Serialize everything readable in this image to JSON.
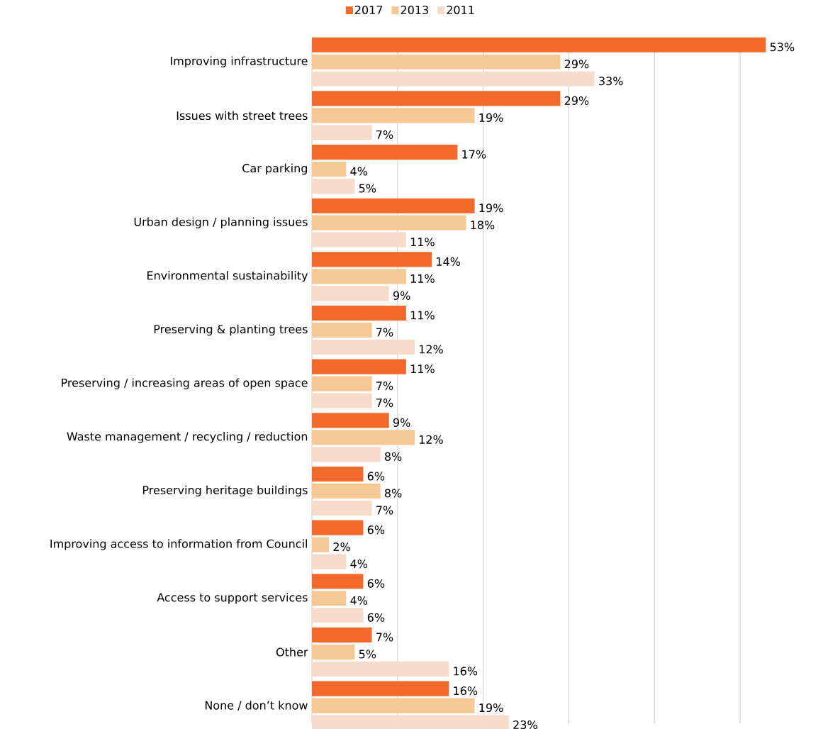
{
  "chart_data": {
    "type": "bar",
    "orientation": "horizontal",
    "categories": [
      "Improving infrastructure",
      "Issues with street trees",
      "Car parking",
      "Urban design / planning issues",
      "Environmental sustainability",
      "Preserving & planting trees",
      "Preserving / increasing areas of open space",
      "Waste management / recycling / reduction",
      "Preserving heritage buildings",
      "Improving access to information from Council",
      "Access to support services",
      "Other",
      "None / don’t know"
    ],
    "series": [
      {
        "name": "2017",
        "color": "#f26a2b",
        "values": [
          53,
          29,
          17,
          19,
          14,
          11,
          11,
          9,
          6,
          6,
          6,
          7,
          16
        ],
        "value_labels": [
          "53%",
          "29%",
          "17%",
          "19%",
          "14%",
          "11%",
          "11%",
          "9%",
          "6%",
          "6%",
          "6%",
          "7%",
          "16%"
        ]
      },
      {
        "name": "2013",
        "color": "#f6c896",
        "values": [
          29,
          19,
          4,
          18,
          11,
          7,
          7,
          12,
          8,
          2,
          4,
          5,
          19
        ],
        "value_labels": [
          "29%",
          "19%",
          "4%",
          "18%",
          "11%",
          "7%",
          "7%",
          "12%",
          "8%",
          "2%",
          "4%",
          "5%",
          "19%"
        ]
      },
      {
        "name": "2011",
        "color": "#f8dccb",
        "values": [
          33,
          7,
          5,
          11,
          9,
          12,
          7,
          8,
          7,
          4,
          6,
          16,
          23
        ],
        "value_labels": [
          "33%",
          "7%",
          "5%",
          "11%",
          "9%",
          "12%",
          "7%",
          "8%",
          "7%",
          "4%",
          "6%",
          "16%",
          "23%"
        ]
      }
    ],
    "xticks": [
      {
        "value": 0,
        "label": null
      },
      {
        "value": 10,
        "label": null
      },
      {
        "value": 20,
        "label": null
      },
      {
        "value": 30,
        "label": null
      },
      {
        "value": 40,
        "label": null
      },
      {
        "value": 50,
        "label": null
      }
    ],
    "grid": "x",
    "legend": "top",
    "tick_labels": "y"
  }
}
